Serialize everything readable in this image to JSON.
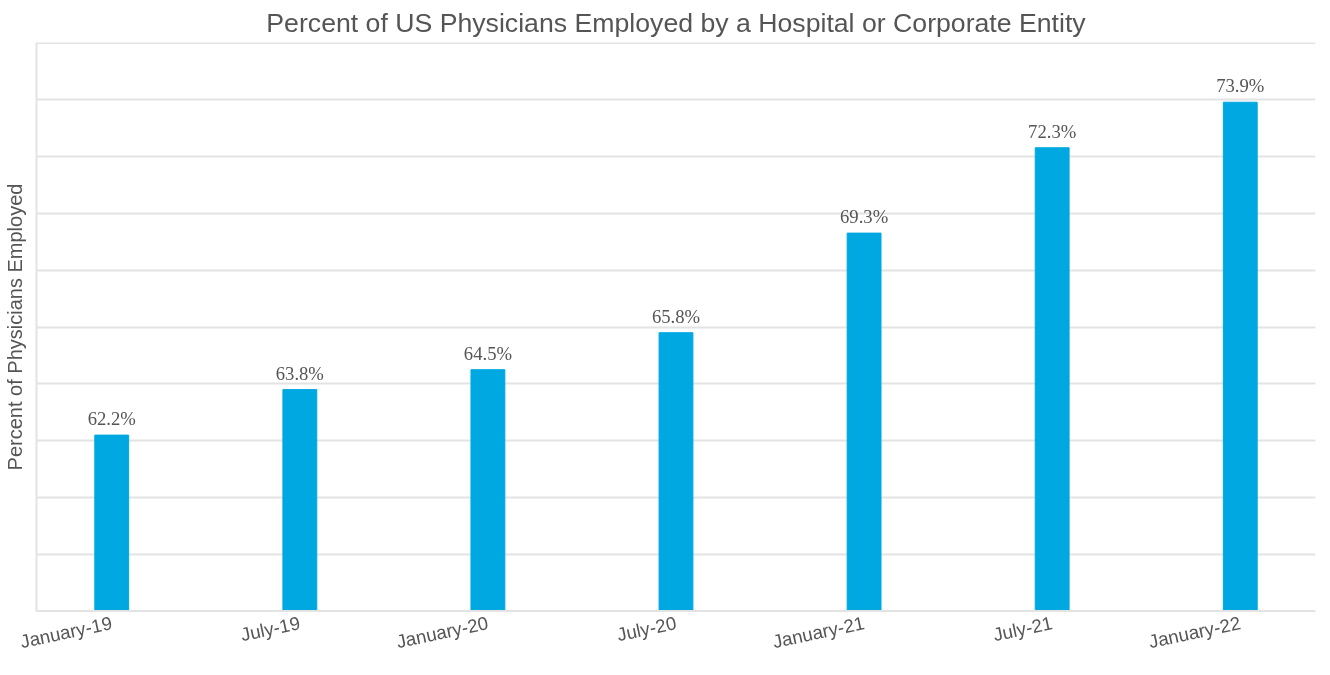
{
  "chart_data": {
    "type": "bar",
    "title": "Percent of US Physicians Employed by a Hospital or Corporate Entity",
    "ylabel": "Percent of Physicians Employed",
    "categories": [
      "January-19",
      "July-19",
      "January-20",
      "July-20",
      "January-21",
      "July-21",
      "January-22"
    ],
    "values": [
      62.2,
      63.8,
      64.5,
      65.8,
      69.3,
      72.3,
      73.9
    ],
    "value_labels": [
      "62.2%",
      "63.8%",
      "64.5%",
      "65.8%",
      "69.3%",
      "72.3%",
      "73.9%"
    ],
    "color": "#00a8e1",
    "ylim": [
      56,
      76
    ],
    "yticks": [
      {
        "value": 56,
        "label": null
      },
      {
        "value": 58,
        "label": null
      },
      {
        "value": 60,
        "label": null
      },
      {
        "value": 62,
        "label": null
      },
      {
        "value": 64,
        "label": null
      },
      {
        "value": 66,
        "label": null
      },
      {
        "value": 68,
        "label": null
      },
      {
        "value": 70,
        "label": null
      },
      {
        "value": 72,
        "label": null
      },
      {
        "value": 74,
        "label": null
      },
      {
        "value": 76,
        "label": null
      }
    ],
    "grid": "y",
    "tick_labels": "x"
  }
}
